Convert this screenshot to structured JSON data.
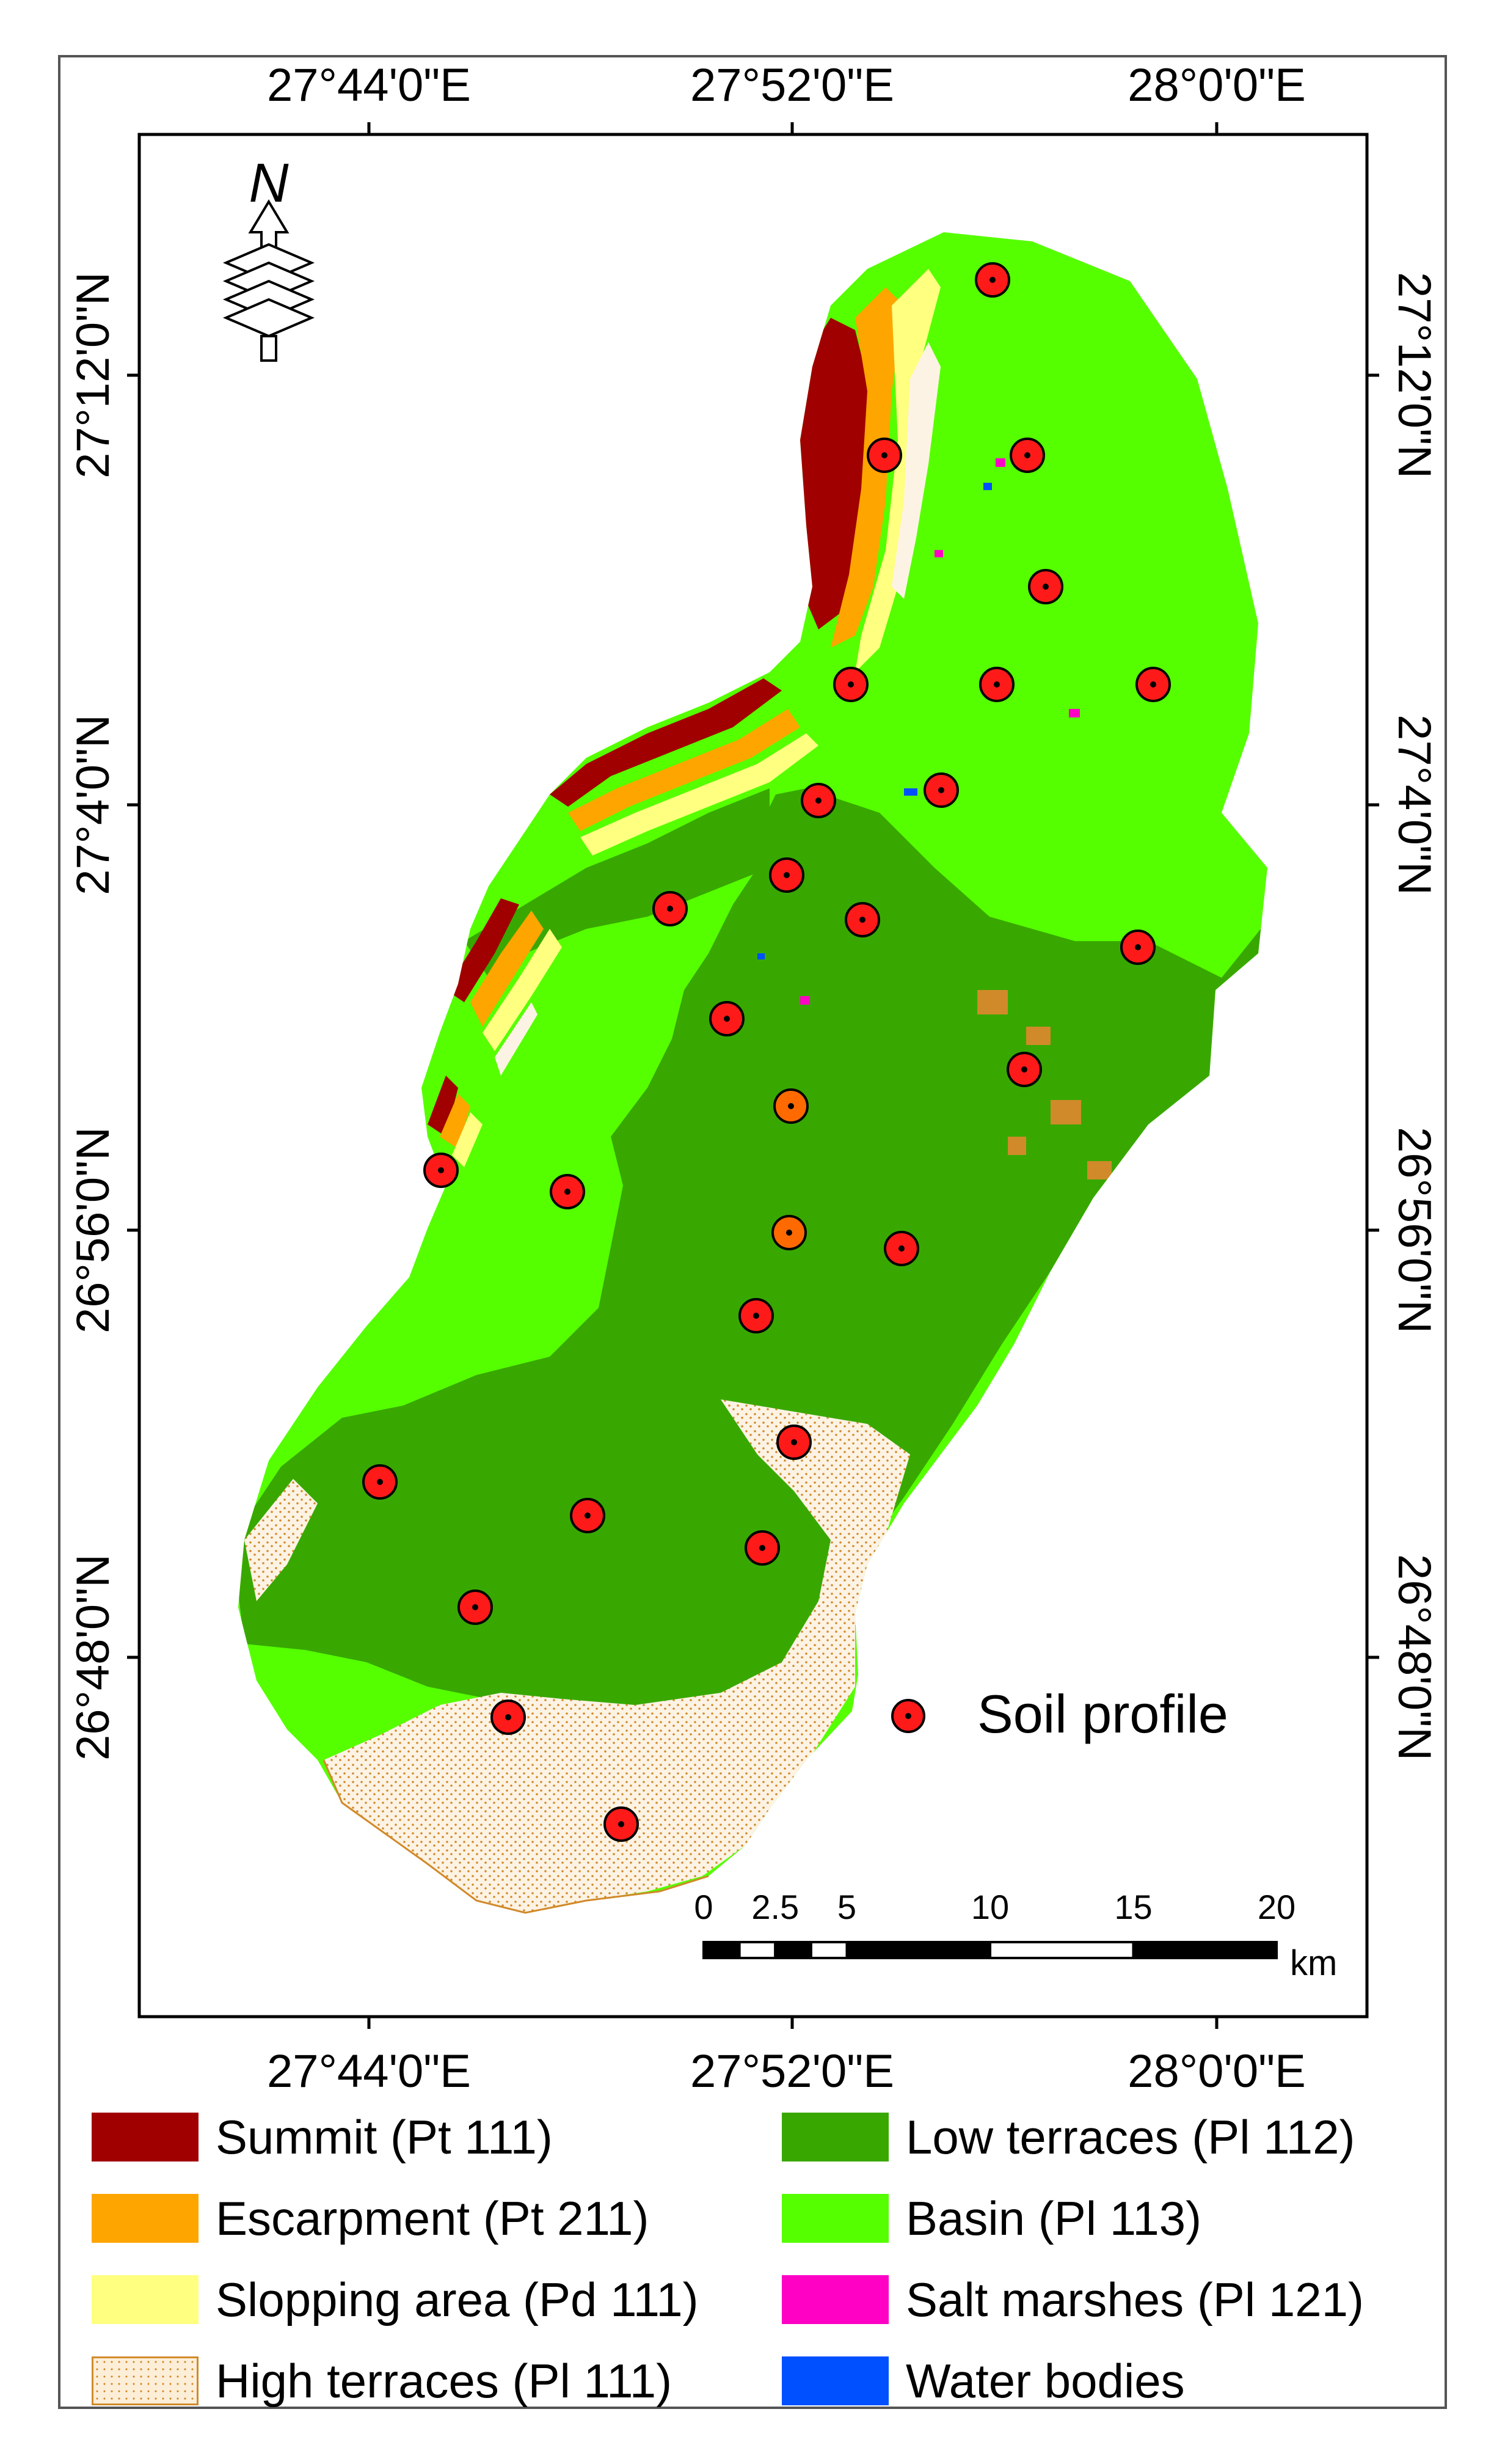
{
  "map": {
    "top_lon_labels": [
      "27°44'0\"E",
      "27°52'0\"E",
      "28°0'0\"E"
    ],
    "bottom_lon_labels": [
      "27°44'0\"E",
      "27°52'0\"E",
      "28°0'0\"E"
    ],
    "left_lat_labels": [
      "27°12'0\"N",
      "27°4'0\"N",
      "26°56'0\"N",
      "26°48'0\"N"
    ],
    "right_lat_labels": [
      "27°12'0\"N",
      "27°4'0\"N",
      "26°56'0\"N",
      "26°48'0\"N"
    ],
    "north_arrow_label": "N",
    "soil_profile_label": "Soil profile",
    "scale_labels": [
      "0",
      "2.5",
      "5",
      "10",
      "15",
      "20"
    ],
    "scale_unit": "km",
    "colors": {
      "summit": "#a00000",
      "escarpment": "#ffa500",
      "slopping": "#ffff80",
      "high_terraces": "#fdeed8",
      "low_terraces": "#38a800",
      "basin": "#55ff00",
      "salt_marshes": "#ff00c5",
      "water": "#0050ff",
      "profile": "#ff1a1a"
    }
  },
  "legend": {
    "left": [
      {
        "label": "Summit (Pt 111)",
        "color": "#a00000"
      },
      {
        "label": "Escarpment (Pt 211)",
        "color": "#ffa500"
      },
      {
        "label": "Slopping area (Pd 111)",
        "color": "#ffff80"
      },
      {
        "label": "High terraces (Pl 111)",
        "color": "#fdeed8"
      }
    ],
    "right": [
      {
        "label": "Low terraces (Pl 112)",
        "color": "#38a800"
      },
      {
        "label": "Basin (Pl 113)",
        "color": "#55ff00"
      },
      {
        "label": "Salt marshes (Pl 121)",
        "color": "#ff00c5"
      },
      {
        "label": "Water bodies",
        "color": "#0050ff"
      }
    ]
  }
}
